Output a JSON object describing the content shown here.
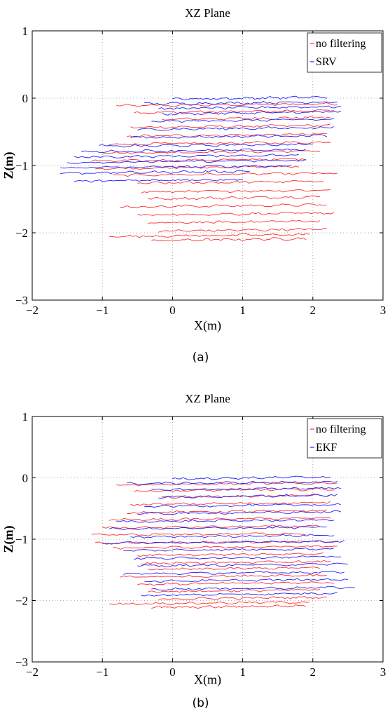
{
  "chart_data": [
    {
      "type": "line",
      "title": "XZ Plane",
      "xlabel": "X(m)",
      "ylabel": "Z(m)",
      "xlim": [
        -2,
        3
      ],
      "ylim": [
        -3,
        1
      ],
      "xticks": [
        -2,
        -1,
        0,
        1,
        2,
        3
      ],
      "yticks": [
        1,
        0,
        -1,
        -2,
        -3
      ],
      "grid": true,
      "legend_position": "top-right",
      "caption": "(a)",
      "series": [
        {
          "name": "no filtering",
          "color": "#ff3030",
          "strokes": [
            {
              "z": -0.1,
              "x_start": -0.8,
              "x_end": 2.35
            },
            {
              "z": -0.2,
              "x_start": -0.55,
              "x_end": 2.3
            },
            {
              "z": -0.3,
              "x_start": -0.15,
              "x_end": 2.25
            },
            {
              "z": -0.42,
              "x_start": -0.6,
              "x_end": 2.25
            },
            {
              "z": -0.55,
              "x_start": -0.65,
              "x_end": 2.2
            },
            {
              "z": -0.67,
              "x_start": -0.9,
              "x_end": 2.25
            },
            {
              "z": -0.8,
              "x_start": -1.0,
              "x_end": 2.1
            },
            {
              "z": -0.92,
              "x_start": -1.15,
              "x_end": 1.9
            },
            {
              "z": -1.03,
              "x_start": -1.1,
              "x_end": 1.8
            },
            {
              "z": -1.13,
              "x_start": -0.85,
              "x_end": 2.35
            },
            {
              "z": -1.25,
              "x_start": -0.5,
              "x_end": 2.15
            },
            {
              "z": -1.38,
              "x_start": -0.45,
              "x_end": 2.25
            },
            {
              "z": -1.48,
              "x_start": -0.35,
              "x_end": 2.1
            },
            {
              "z": -1.6,
              "x_start": -0.75,
              "x_end": 2.2
            },
            {
              "z": -1.72,
              "x_start": -0.5,
              "x_end": 2.3
            },
            {
              "z": -1.84,
              "x_start": -0.35,
              "x_end": 2.1
            },
            {
              "z": -1.96,
              "x_start": -0.2,
              "x_end": 2.2
            },
            {
              "z": -2.04,
              "x_start": -0.9,
              "x_end": 1.95
            },
            {
              "z": -2.1,
              "x_start": -0.3,
              "x_end": 1.9
            }
          ]
        },
        {
          "name": "SRV",
          "color": "#2020ff",
          "strokes": [
            {
              "z": 0.0,
              "x_start": 0.0,
              "x_end": 2.2
            },
            {
              "z": -0.07,
              "x_start": -0.4,
              "x_end": 2.35
            },
            {
              "z": -0.14,
              "x_start": -0.2,
              "x_end": 2.4
            },
            {
              "z": -0.22,
              "x_start": -0.15,
              "x_end": 2.4
            },
            {
              "z": -0.33,
              "x_start": -0.3,
              "x_end": 2.3
            },
            {
              "z": -0.45,
              "x_start": -0.5,
              "x_end": 2.3
            },
            {
              "z": -0.57,
              "x_start": -0.6,
              "x_end": 2.2
            },
            {
              "z": -0.7,
              "x_start": -1.05,
              "x_end": 2.0
            },
            {
              "z": -0.78,
              "x_start": -1.3,
              "x_end": 1.9
            },
            {
              "z": -0.86,
              "x_start": -1.4,
              "x_end": 1.8
            },
            {
              "z": -0.94,
              "x_start": -1.5,
              "x_end": 1.9
            },
            {
              "z": -1.02,
              "x_start": -1.6,
              "x_end": 1.7
            },
            {
              "z": -1.1,
              "x_start": -1.6,
              "x_end": 1.1
            },
            {
              "z": -1.22,
              "x_start": -1.4,
              "x_end": 1.0
            }
          ]
        }
      ]
    },
    {
      "type": "line",
      "title": "XZ Plane",
      "xlabel": "X(m)",
      "ylabel": "Z(m)",
      "xlim": [
        -2,
        3
      ],
      "ylim": [
        -3,
        1
      ],
      "xticks": [
        -2,
        -1,
        0,
        1,
        2,
        3
      ],
      "yticks": [
        1,
        0,
        -1,
        -2,
        -3
      ],
      "grid": true,
      "legend_position": "top-right",
      "caption": "(b)",
      "series": [
        {
          "name": "no filtering",
          "color": "#ff3030",
          "strokes": [
            {
              "z": -0.1,
              "x_start": -0.8,
              "x_end": 2.35
            },
            {
              "z": -0.2,
              "x_start": -0.55,
              "x_end": 2.3
            },
            {
              "z": -0.3,
              "x_start": -0.15,
              "x_end": 2.25
            },
            {
              "z": -0.42,
              "x_start": -0.6,
              "x_end": 2.25
            },
            {
              "z": -0.55,
              "x_start": -0.65,
              "x_end": 2.2
            },
            {
              "z": -0.67,
              "x_start": -0.9,
              "x_end": 2.25
            },
            {
              "z": -0.8,
              "x_start": -1.0,
              "x_end": 2.1
            },
            {
              "z": -0.92,
              "x_start": -1.15,
              "x_end": 1.9
            },
            {
              "z": -1.05,
              "x_start": -1.1,
              "x_end": 2.35
            },
            {
              "z": -1.13,
              "x_start": -0.85,
              "x_end": 2.35
            },
            {
              "z": -1.25,
              "x_start": -0.5,
              "x_end": 2.15
            },
            {
              "z": -1.38,
              "x_start": -0.45,
              "x_end": 2.25
            },
            {
              "z": -1.48,
              "x_start": -0.35,
              "x_end": 2.1
            },
            {
              "z": -1.6,
              "x_start": -0.75,
              "x_end": 2.2
            },
            {
              "z": -1.72,
              "x_start": -0.5,
              "x_end": 2.3
            },
            {
              "z": -1.84,
              "x_start": -0.35,
              "x_end": 2.1
            },
            {
              "z": -1.96,
              "x_start": -0.2,
              "x_end": 2.2
            },
            {
              "z": -2.04,
              "x_start": -0.9,
              "x_end": 1.95
            },
            {
              "z": -2.1,
              "x_start": -0.3,
              "x_end": 1.9
            }
          ]
        },
        {
          "name": "EKF",
          "color": "#2020ff",
          "strokes": [
            {
              "z": 0.0,
              "x_start": 0.0,
              "x_end": 2.25
            },
            {
              "z": -0.08,
              "x_start": -0.65,
              "x_end": 2.35
            },
            {
              "z": -0.18,
              "x_start": -0.3,
              "x_end": 2.4
            },
            {
              "z": -0.3,
              "x_start": -0.2,
              "x_end": 2.35
            },
            {
              "z": -0.45,
              "x_start": -0.4,
              "x_end": 2.4
            },
            {
              "z": -0.57,
              "x_start": -0.5,
              "x_end": 2.4
            },
            {
              "z": -0.7,
              "x_start": -0.8,
              "x_end": 2.3
            },
            {
              "z": -0.82,
              "x_start": -0.9,
              "x_end": 2.2
            },
            {
              "z": -0.95,
              "x_start": -0.6,
              "x_end": 2.3
            },
            {
              "z": -1.05,
              "x_start": -1.0,
              "x_end": 2.45
            },
            {
              "z": -1.17,
              "x_start": -0.7,
              "x_end": 2.3
            },
            {
              "z": -1.3,
              "x_start": -0.55,
              "x_end": 2.4
            },
            {
              "z": -1.42,
              "x_start": -0.5,
              "x_end": 2.5
            },
            {
              "z": -1.55,
              "x_start": -0.7,
              "x_end": 2.45
            },
            {
              "z": -1.67,
              "x_start": -0.4,
              "x_end": 2.5
            },
            {
              "z": -1.8,
              "x_start": -0.3,
              "x_end": 2.6
            },
            {
              "z": -1.9,
              "x_start": -0.45,
              "x_end": 2.35
            }
          ]
        }
      ]
    }
  ]
}
